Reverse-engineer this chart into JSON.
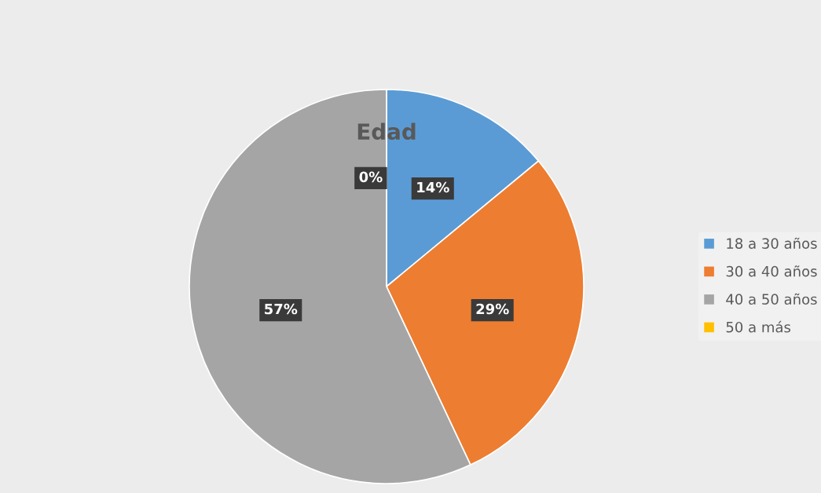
{
  "chart_data": {
    "type": "pie",
    "title": "Edad",
    "categories": [
      "18 a 30 años",
      "30 a 40 años",
      "40 a 50 años",
      "50 a más"
    ],
    "values": [
      14,
      29,
      57,
      0
    ],
    "value_labels": [
      "14%",
      "29%",
      "57%",
      "0%"
    ],
    "colors": [
      "#5b9bd5",
      "#ed7d31",
      "#a5a5a5",
      "#ffc000"
    ],
    "legend": "right"
  }
}
